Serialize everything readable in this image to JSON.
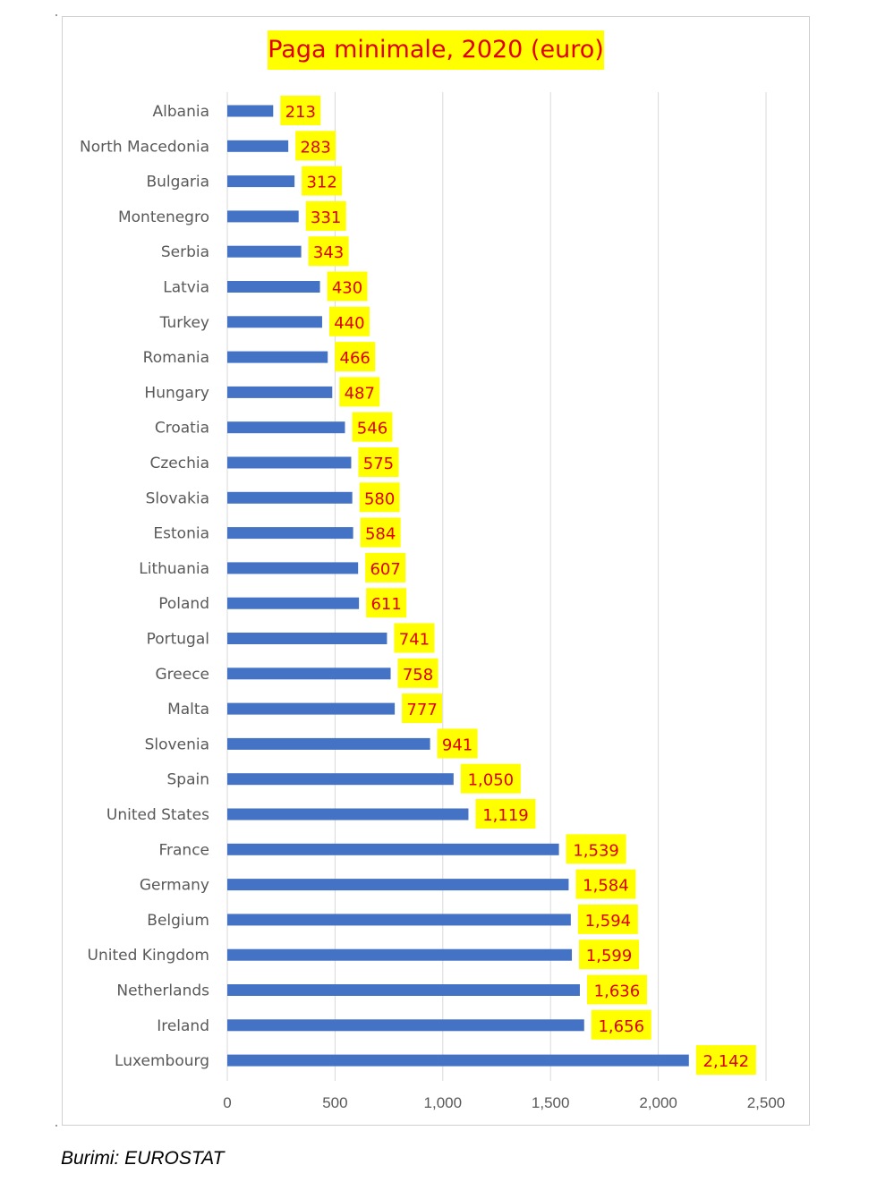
{
  "chart_data": {
    "type": "bar",
    "orientation": "horizontal",
    "title": "Paga minimale, 2020 (euro)",
    "categories": [
      "Albania",
      "North Macedonia",
      "Bulgaria",
      "Montenegro",
      "Serbia",
      "Latvia",
      "Turkey",
      "Romania",
      "Hungary",
      "Croatia",
      "Czechia",
      "Slovakia",
      "Estonia",
      "Lithuania",
      "Poland",
      "Portugal",
      "Greece",
      "Malta",
      "Slovenia",
      "Spain",
      "United States",
      "France",
      "Germany",
      "Belgium",
      "United Kingdom",
      "Netherlands",
      "Ireland",
      "Luxembourg"
    ],
    "values": [
      213,
      283,
      312,
      331,
      343,
      430,
      440,
      466,
      487,
      546,
      575,
      580,
      584,
      607,
      611,
      741,
      758,
      777,
      941,
      1050,
      1119,
      1539,
      1584,
      1594,
      1599,
      1636,
      1656,
      2142
    ],
    "data_labels": [
      "213",
      "283",
      "312",
      "331",
      "343",
      "430",
      "440",
      "466",
      "487",
      "546",
      "575",
      "580",
      "584",
      "607",
      "611",
      "741",
      "758",
      "777",
      "941",
      "1,050",
      "1,119",
      "1,539",
      "1,584",
      "1,594",
      "1,599",
      "1,636",
      "1,656",
      "2,142"
    ],
    "xlim": [
      0,
      2500
    ],
    "x_ticks": [
      0,
      500,
      1000,
      1500,
      2000,
      2500
    ],
    "x_tick_labels": [
      "0",
      "500",
      "1,000",
      "1,500",
      "2,000",
      "2,500"
    ],
    "grid": "vertical",
    "legend": "none",
    "colors": {
      "bar": "#4472c4",
      "label_bg": "#ffff00",
      "label_text": "#e00000",
      "grid": "#d9d9d9",
      "axis_text": "#595959"
    }
  },
  "source": "Burimi: EUROSTAT"
}
